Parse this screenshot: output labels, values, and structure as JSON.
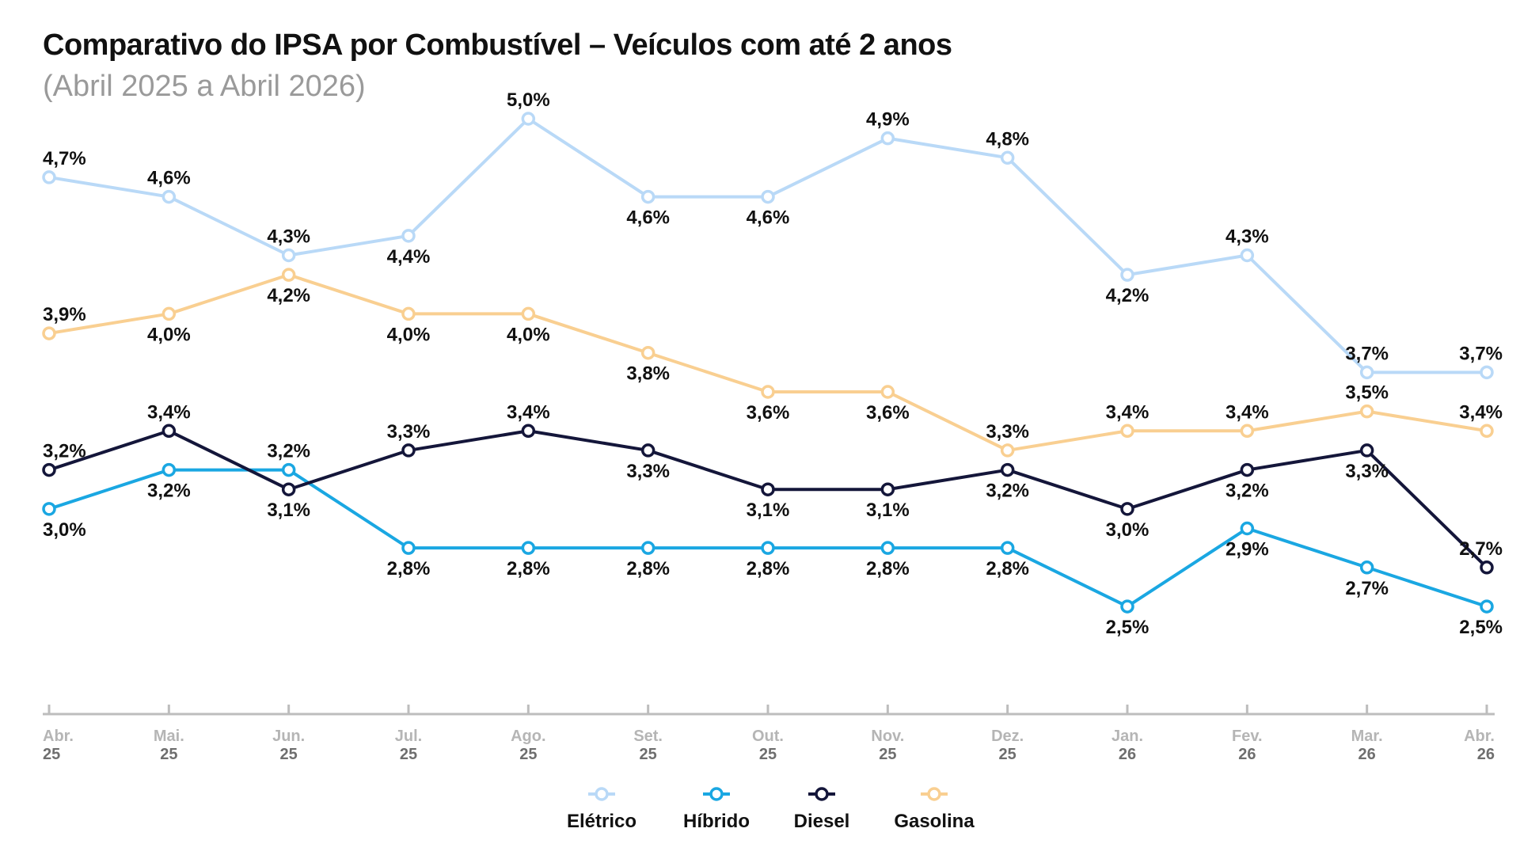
{
  "chart_data": {
    "type": "line",
    "title": "Comparativo do IPSA por Combustível – Veículos com até 2 anos",
    "subtitle": "(Abril 2025 a Abril 2026)",
    "categories": [
      {
        "month": "Abr.",
        "year": "25"
      },
      {
        "month": "Mai.",
        "year": "25"
      },
      {
        "month": "Jun.",
        "year": "25"
      },
      {
        "month": "Jul.",
        "year": "25"
      },
      {
        "month": "Ago.",
        "year": "25"
      },
      {
        "month": "Set.",
        "year": "25"
      },
      {
        "month": "Out.",
        "year": "25"
      },
      {
        "month": "Nov.",
        "year": "25"
      },
      {
        "month": "Dez.",
        "year": "25"
      },
      {
        "month": "Jan.",
        "year": "26"
      },
      {
        "month": "Fev.",
        "year": "26"
      },
      {
        "month": "Mar.",
        "year": "26"
      },
      {
        "month": "Abr.",
        "year": "26"
      }
    ],
    "ylim": [
      2.2,
      5.0
    ],
    "grid": false,
    "legend_position": "bottom",
    "series": [
      {
        "name": "Elétrico",
        "color": "#b9d9f7",
        "values": [
          4.7,
          4.6,
          4.3,
          4.4,
          5.0,
          4.6,
          4.6,
          4.9,
          4.8,
          4.2,
          4.3,
          3.7,
          3.7
        ],
        "labels": [
          "4,7%",
          "4,6%",
          "4,3%",
          "4,4%",
          "5,0%",
          "4,6%",
          "4,6%",
          "4,9%",
          "4,8%",
          "4,2%",
          "4,3%",
          "3,7%",
          "3,7%"
        ],
        "label_pos": [
          "above",
          "above",
          "above",
          "below",
          "above",
          "below",
          "below",
          "above",
          "above",
          "below",
          "above",
          "above",
          "above"
        ]
      },
      {
        "name": "Híbrido",
        "color": "#1aa7e2",
        "values": [
          3.0,
          3.2,
          3.2,
          2.8,
          2.8,
          2.8,
          2.8,
          2.8,
          2.8,
          2.5,
          2.9,
          2.7,
          2.5
        ],
        "labels": [
          "3,0%",
          "3,2%",
          "3,2%",
          "2,8%",
          "2,8%",
          "2,8%",
          "2,8%",
          "2,8%",
          "2,8%",
          "2,5%",
          "2,9%",
          "2,7%",
          "2,5%"
        ],
        "label_pos": [
          "below",
          "below",
          "above",
          "below",
          "below",
          "below",
          "below",
          "below",
          "below",
          "below",
          "below",
          "below",
          "below"
        ]
      },
      {
        "name": "Diesel",
        "color": "#14163a",
        "values": [
          3.2,
          3.4,
          3.1,
          3.3,
          3.4,
          3.3,
          3.1,
          3.1,
          3.2,
          3.0,
          3.2,
          3.3,
          2.7
        ],
        "labels": [
          "3,2%",
          "3,4%",
          "3,1%",
          "3,3%",
          "3,4%",
          "3,3%",
          "3,1%",
          "3,1%",
          "3,2%",
          "3,0%",
          "3,2%",
          "3,3%",
          "2,7%"
        ],
        "label_pos": [
          "above",
          "above",
          "below",
          "above",
          "above",
          "below",
          "below",
          "below",
          "below",
          "below",
          "below",
          "below",
          "above"
        ]
      },
      {
        "name": "Gasolina",
        "color": "#f9cf91",
        "values": [
          3.9,
          4.0,
          4.2,
          4.0,
          4.0,
          3.8,
          3.6,
          3.6,
          3.3,
          3.4,
          3.4,
          3.5,
          3.4
        ],
        "labels": [
          "3,9%",
          "4,0%",
          "4,2%",
          "4,0%",
          "4,0%",
          "3,8%",
          "3,6%",
          "3,6%",
          "3,3%",
          "3,4%",
          "3,4%",
          "3,5%",
          "3,4%"
        ],
        "label_pos": [
          "above",
          "below",
          "below",
          "below",
          "below",
          "below",
          "below",
          "below",
          "above",
          "above",
          "above",
          "above",
          "above"
        ]
      }
    ]
  }
}
